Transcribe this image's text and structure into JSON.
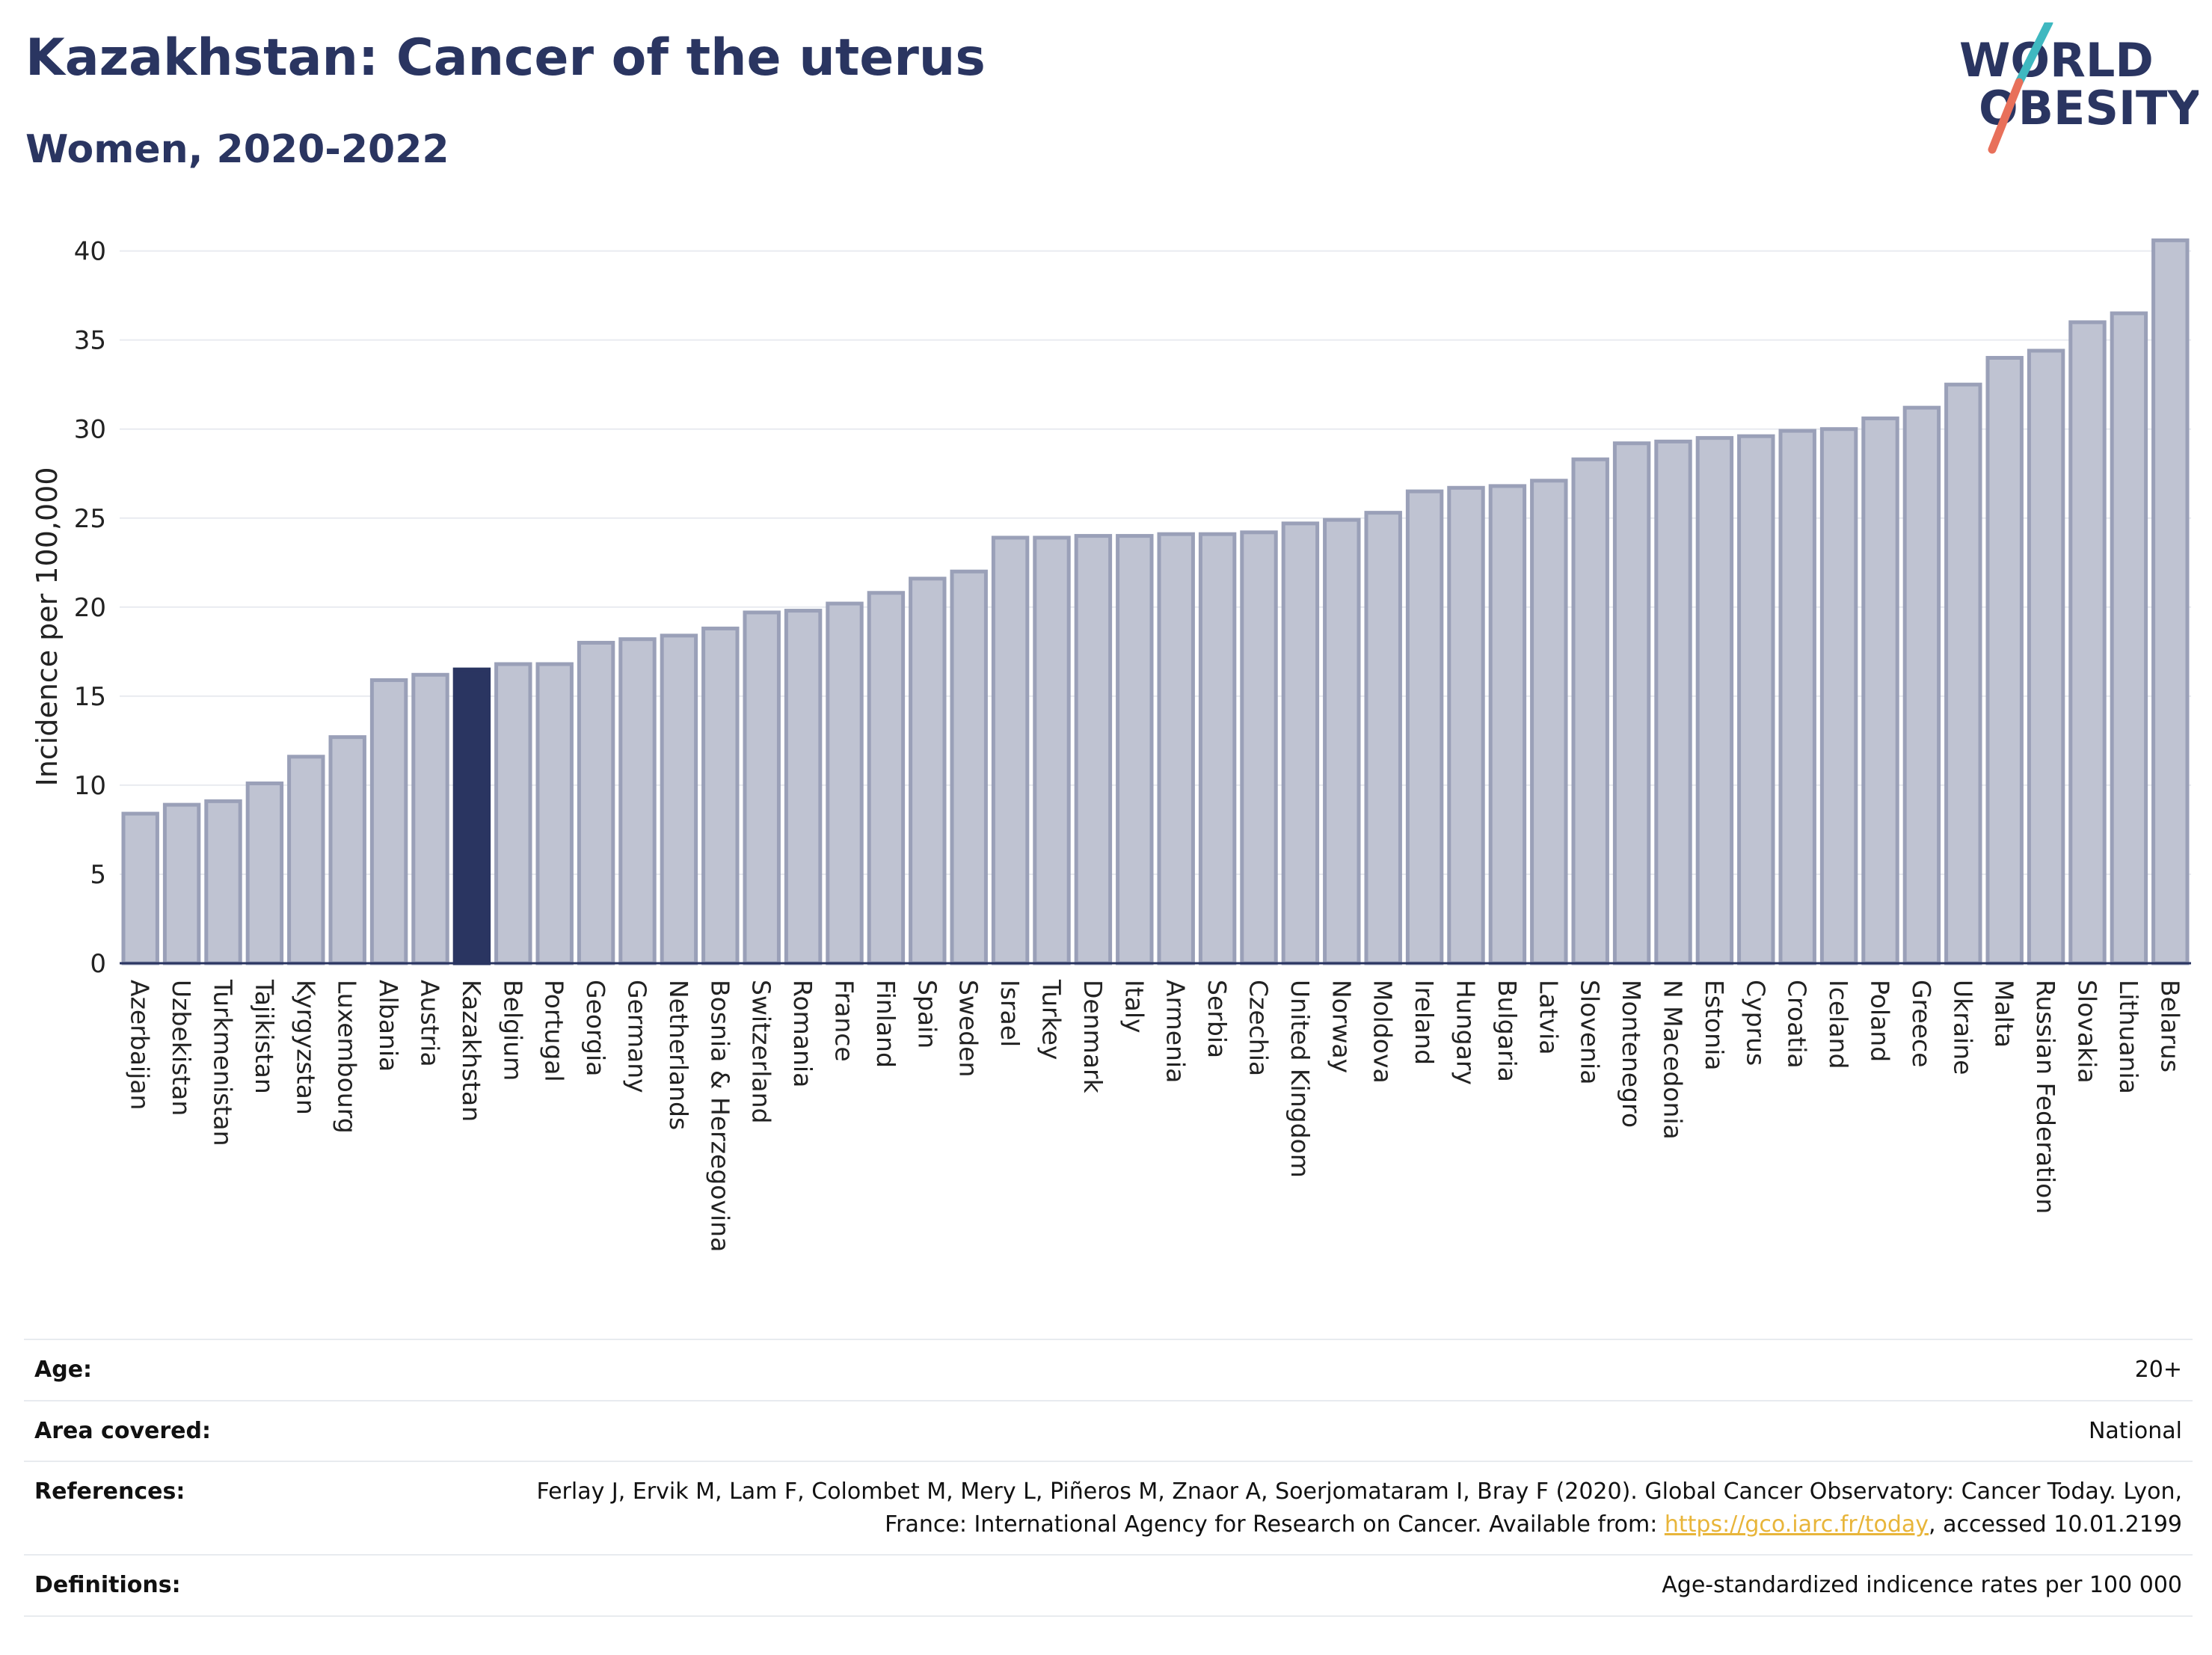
{
  "header": {
    "title": "Kazakhstan: Cancer of the uterus",
    "subtitle": "Women, 2020-2022"
  },
  "logo": {
    "line1": "WORLD",
    "line2": "OBESITY"
  },
  "colors": {
    "highlight": "#2a3561",
    "bar_fill": "#bfc3d2",
    "bar_stroke": "#9aa0b8",
    "grid": "#e9ebf0",
    "text": "#2a3561",
    "logo_slash_top": "#3fb8c0",
    "logo_slash_bottom": "#e8705a",
    "link": "#e8b53a"
  },
  "chart_data": {
    "type": "bar",
    "title": "Kazakhstan: Cancer of the uterus",
    "subtitle": "Women, 2020-2022",
    "xlabel": "",
    "ylabel": "Incidence per 100,000",
    "ylim": [
      0,
      42
    ],
    "yticks": [
      0,
      5,
      10,
      15,
      20,
      25,
      30,
      35,
      40
    ],
    "grid": true,
    "highlight": "Kazakhstan",
    "categories": [
      "Azerbaijan",
      "Uzbekistan",
      "Turkmenistan",
      "Tajikistan",
      "Kyrgyzstan",
      "Luxembourg",
      "Albania",
      "Austria",
      "Kazakhstan",
      "Belgium",
      "Portugal",
      "Georgia",
      "Germany",
      "Netherlands",
      "Bosnia & Herzegovina",
      "Switzerland",
      "Romania",
      "France",
      "Finland",
      "Spain",
      "Sweden",
      "Israel",
      "Turkey",
      "Denmark",
      "Italy",
      "Armenia",
      "Serbia",
      "Czechia",
      "United Kingdom",
      "Norway",
      "Moldova",
      "Ireland",
      "Hungary",
      "Bulgaria",
      "Latvia",
      "Slovenia",
      "Montenegro",
      "N Macedonia",
      "Estonia",
      "Cyprus",
      "Croatia",
      "Iceland",
      "Poland",
      "Greece",
      "Ukraine",
      "Malta",
      "Russian Federation",
      "Slovakia",
      "Lithuania",
      "Belarus"
    ],
    "values": [
      8.4,
      8.9,
      9.1,
      10.1,
      11.6,
      12.7,
      15.9,
      16.2,
      16.5,
      16.8,
      16.8,
      18.0,
      18.2,
      18.4,
      18.8,
      19.7,
      19.8,
      20.2,
      20.8,
      21.6,
      22.0,
      23.9,
      23.9,
      24.0,
      24.0,
      24.1,
      24.1,
      24.2,
      24.7,
      24.9,
      25.3,
      26.5,
      26.7,
      26.8,
      27.1,
      28.3,
      29.2,
      29.3,
      29.5,
      29.6,
      29.9,
      30.0,
      30.6,
      31.2,
      32.5,
      34.0,
      34.4,
      36.0,
      36.5,
      40.6
    ]
  },
  "meta": {
    "age_label": "Age:",
    "age_value": "20+",
    "area_label": "Area covered:",
    "area_value": "National",
    "ref_label": "References:",
    "ref_text_1": "Ferlay J, Ervik M, Lam F, Colombet M, Mery L, Piñeros M, Znaor A, Soerjomataram I, Bray F (2020). Global Cancer Observatory: Cancer Today. Lyon, France: International Agency for Research on Cancer. Available from: ",
    "ref_link": "https://gco.iarc.fr/today",
    "ref_text_2": ", accessed 10.01.2199",
    "def_label": "Definitions:",
    "def_value": "Age-standardized indicence rates per 100 000"
  }
}
